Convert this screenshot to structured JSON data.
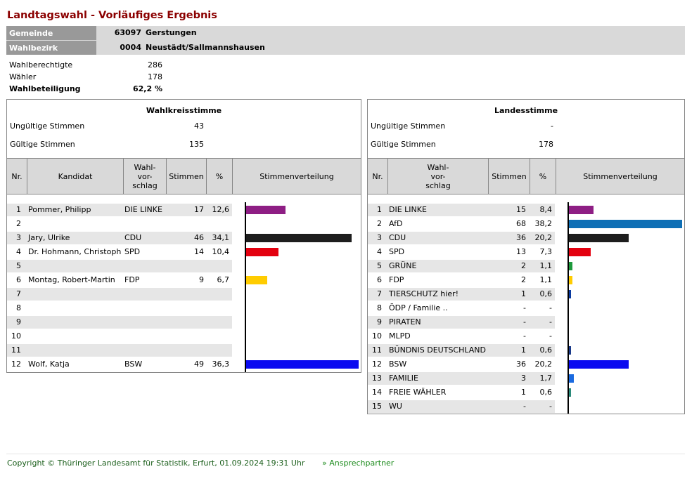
{
  "title": "Landtagswahl - Vorläufiges Ergebnis",
  "info": {
    "gemeinde_label": "Gemeinde",
    "gemeinde_nr": "63097",
    "gemeinde_name": "Gerstungen",
    "wahlbezirk_label": "Wahlbezirk",
    "wahlbezirk_nr": "0004",
    "wahlbezirk_name": "Neustädt/Sallmannshausen"
  },
  "stats": {
    "wahlberechtigte_label": "Wahlberechtigte",
    "wahlberechtigte": "286",
    "waehler_label": "Wähler",
    "waehler": "178",
    "beteiligung_label": "Wahlbeteiligung",
    "beteiligung": "62,2 %"
  },
  "wks": {
    "title": "Wahlkreisstimme",
    "ungueltig_label": "Ungültige Stimmen",
    "ungueltig": "43",
    "gueltig_label": "Gültige Stimmen",
    "gueltig": "135",
    "headers": {
      "nr": "Nr.",
      "kandidat": "Kandidat",
      "vorschlag": "Wahl-\nvor-\nschlag",
      "stimmen": "Stimmen",
      "pct": "%",
      "verteilung": "Stimmenverteilung"
    },
    "rows": [
      {
        "nr": "1",
        "name": "Pommer, Philipp",
        "party": "DIE LINKE",
        "votes": "17",
        "pct": "12,6",
        "value": 12.6,
        "color": "#8e1e84"
      },
      {
        "nr": "2",
        "name": "",
        "party": "",
        "votes": "",
        "pct": "",
        "value": 0,
        "color": ""
      },
      {
        "nr": "3",
        "name": "Jary, Ulrike",
        "party": "CDU",
        "votes": "46",
        "pct": "34,1",
        "value": 34.1,
        "color": "#1e1e1e"
      },
      {
        "nr": "4",
        "name": "Dr. Hohmann, Christoph",
        "party": "SPD",
        "votes": "14",
        "pct": "10,4",
        "value": 10.4,
        "color": "#e3000f"
      },
      {
        "nr": "5",
        "name": "",
        "party": "",
        "votes": "",
        "pct": "",
        "value": 0,
        "color": ""
      },
      {
        "nr": "6",
        "name": "Montag, Robert-Martin",
        "party": "FDP",
        "votes": "9",
        "pct": "6,7",
        "value": 6.7,
        "color": "#ffcc00"
      },
      {
        "nr": "7",
        "name": "",
        "party": "",
        "votes": "",
        "pct": "",
        "value": 0,
        "color": ""
      },
      {
        "nr": "8",
        "name": "",
        "party": "",
        "votes": "",
        "pct": "",
        "value": 0,
        "color": ""
      },
      {
        "nr": "9",
        "name": "",
        "party": "",
        "votes": "",
        "pct": "",
        "value": 0,
        "color": ""
      },
      {
        "nr": "10",
        "name": "",
        "party": "",
        "votes": "",
        "pct": "",
        "value": 0,
        "color": ""
      },
      {
        "nr": "11",
        "name": "",
        "party": "",
        "votes": "",
        "pct": "",
        "value": 0,
        "color": ""
      },
      {
        "nr": "12",
        "name": "Wolf, Katja",
        "party": "BSW",
        "votes": "49",
        "pct": "36,3",
        "value": 36.3,
        "color": "#0a0af0"
      }
    ]
  },
  "ls": {
    "title": "Landesstimme",
    "ungueltig_label": "Ungültige Stimmen",
    "ungueltig": "-",
    "gueltig_label": "Gültige Stimmen",
    "gueltig": "178",
    "headers": {
      "nr": "Nr.",
      "vorschlag": "Wahl-\nvor-\nschlag",
      "stimmen": "Stimmen",
      "pct": "%",
      "verteilung": "Stimmenverteilung"
    },
    "rows": [
      {
        "nr": "1",
        "party": "DIE LINKE",
        "votes": "15",
        "pct": "8,4",
        "value": 8.4,
        "color": "#8e1e84"
      },
      {
        "nr": "2",
        "party": "AfD",
        "votes": "68",
        "pct": "38,2",
        "value": 38.2,
        "color": "#0f6fb5"
      },
      {
        "nr": "3",
        "party": "CDU",
        "votes": "36",
        "pct": "20,2",
        "value": 20.2,
        "color": "#1e1e1e"
      },
      {
        "nr": "4",
        "party": "SPD",
        "votes": "13",
        "pct": "7,3",
        "value": 7.3,
        "color": "#e3000f"
      },
      {
        "nr": "5",
        "party": "GRÜNE",
        "votes": "2",
        "pct": "1,1",
        "value": 1.1,
        "color": "#1e9a3c"
      },
      {
        "nr": "6",
        "party": "FDP",
        "votes": "2",
        "pct": "1,1",
        "value": 1.1,
        "color": "#ffcc00"
      },
      {
        "nr": "7",
        "party": "TIERSCHUTZ hier!",
        "votes": "1",
        "pct": "0,6",
        "value": 0.6,
        "color": "#0a3aa0"
      },
      {
        "nr": "8",
        "party": "ÖDP / Familie ..",
        "votes": "-",
        "pct": "-",
        "value": 0,
        "color": ""
      },
      {
        "nr": "9",
        "party": "PIRATEN",
        "votes": "-",
        "pct": "-",
        "value": 0,
        "color": ""
      },
      {
        "nr": "10",
        "party": "MLPD",
        "votes": "-",
        "pct": "-",
        "value": 0,
        "color": ""
      },
      {
        "nr": "11",
        "party": "BÜNDNIS DEUTSCHLAND",
        "votes": "1",
        "pct": "0,6",
        "value": 0.6,
        "color": "#1a3a8a"
      },
      {
        "nr": "12",
        "party": "BSW",
        "votes": "36",
        "pct": "20,2",
        "value": 20.2,
        "color": "#0a0af0"
      },
      {
        "nr": "13",
        "party": "FAMILIE",
        "votes": "3",
        "pct": "1,7",
        "value": 1.7,
        "color": "#1a6ae0"
      },
      {
        "nr": "14",
        "party": "FREIE WÄHLER",
        "votes": "1",
        "pct": "0,6",
        "value": 0.6,
        "color": "#2a8a7a"
      },
      {
        "nr": "15",
        "party": "WU",
        "votes": "-",
        "pct": "-",
        "value": 0,
        "color": ""
      }
    ]
  },
  "footer": {
    "copyright": "Copyright © Thüringer Landesamt für Statistik, Erfurt, 01.09.2024 19:31 Uhr",
    "contact": "» Ansprechpartner"
  }
}
